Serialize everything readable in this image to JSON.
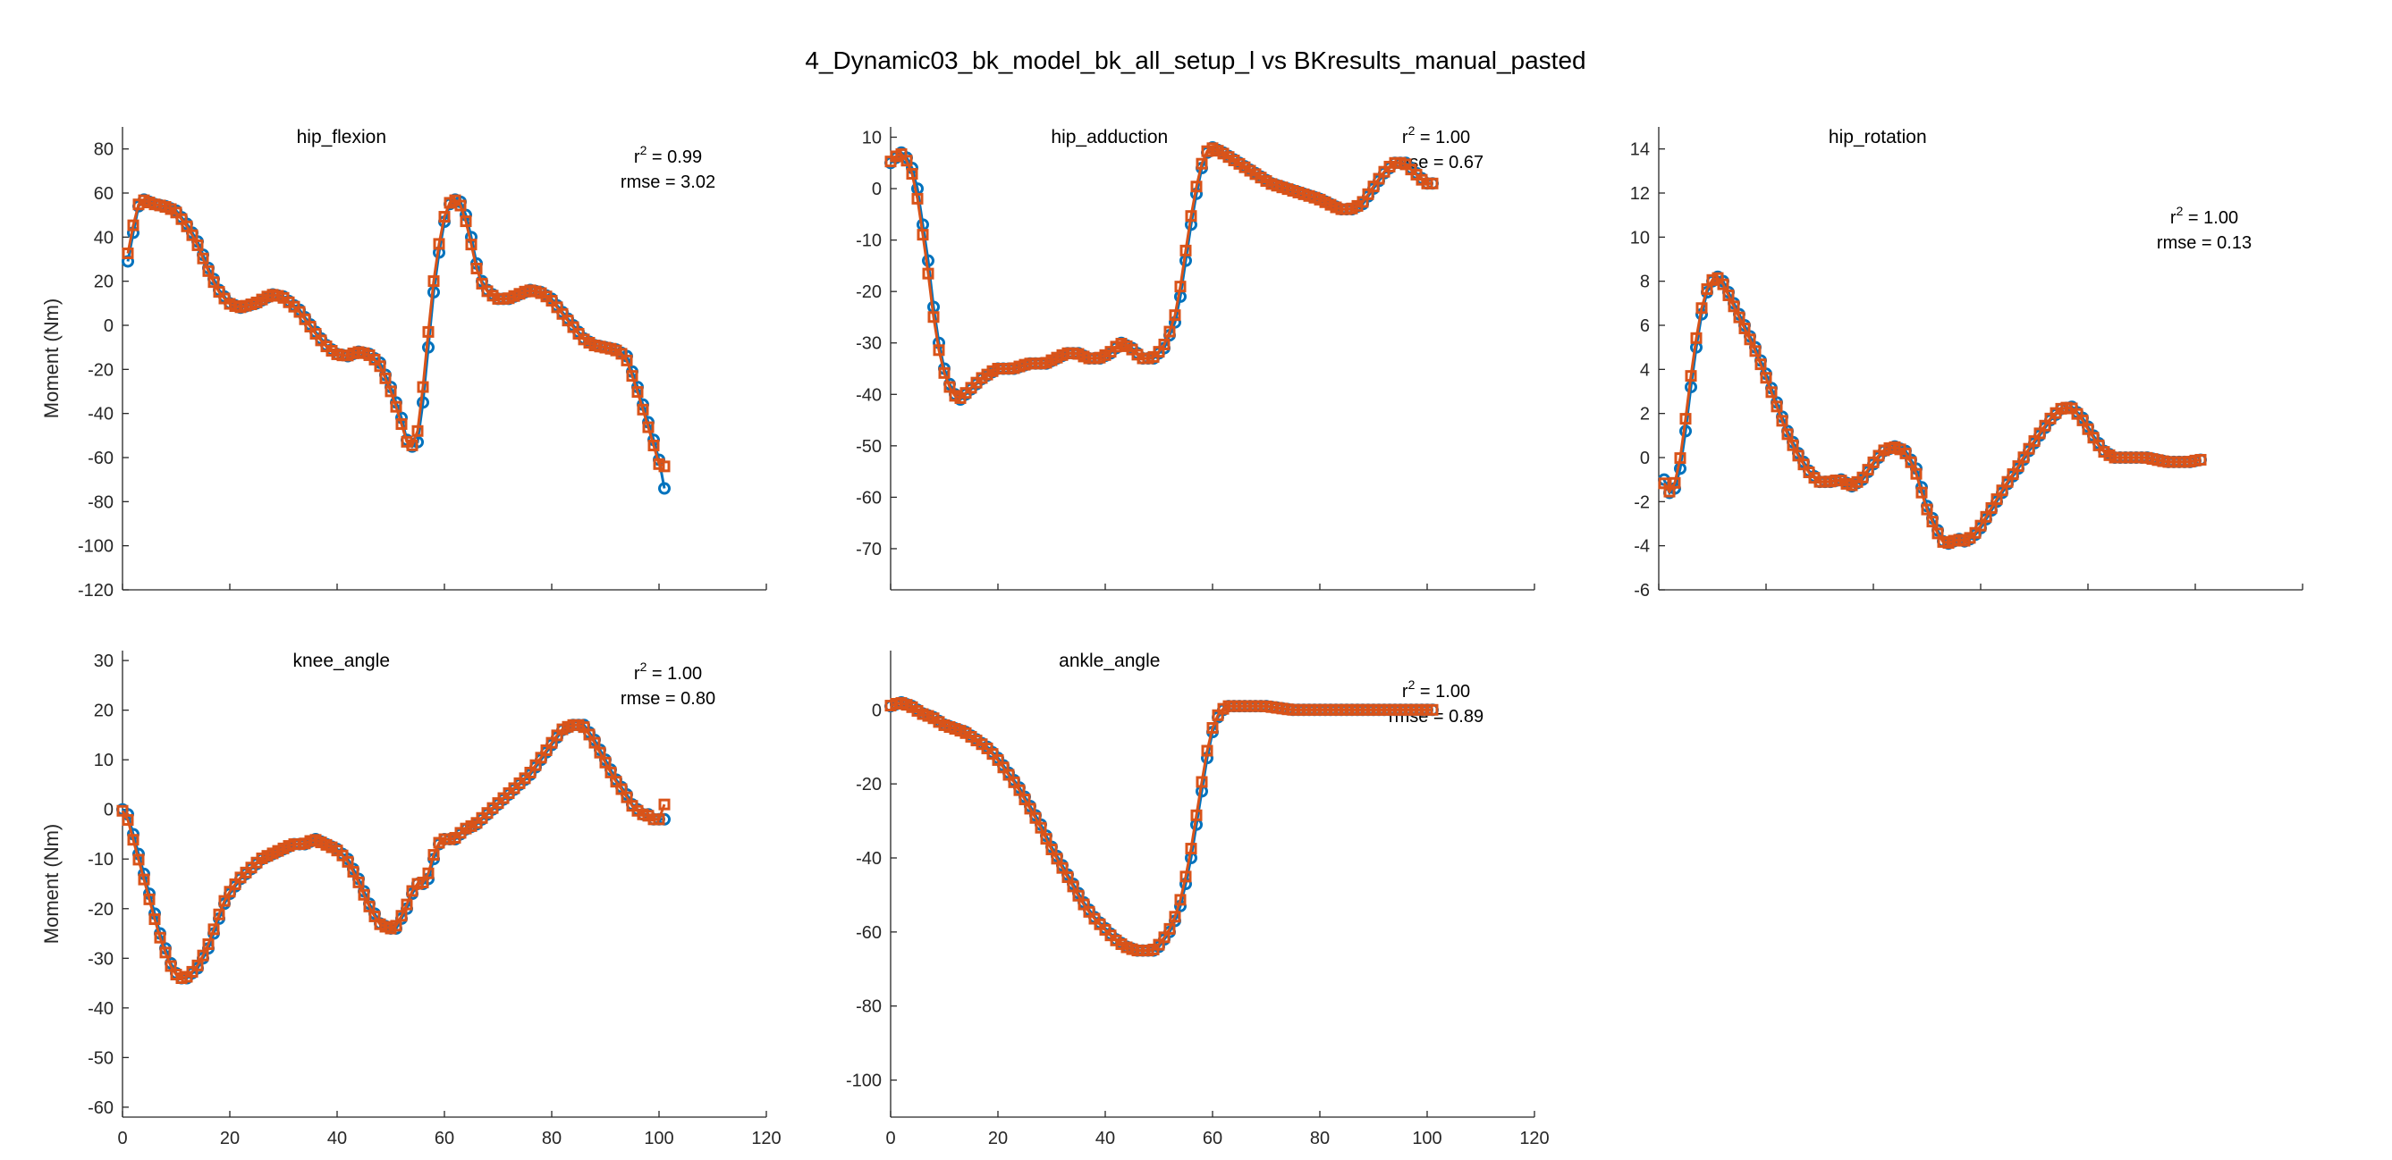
{
  "figure": {
    "title": "4_Dynamic03_bk_model_bk_all_setup_l vs BKresults_manual_pasted",
    "series_colors": {
      "model": "#0072BD",
      "reference": "#D95319"
    }
  },
  "chart_data": [
    {
      "type": "line",
      "title": "hip_flexion",
      "ylabel": "Moment (Nm)",
      "xlabel": "",
      "xlim": [
        0,
        120
      ],
      "ylim": [
        -120,
        90
      ],
      "xticks": [],
      "yticks": [
        80,
        60,
        40,
        20,
        0,
        -20,
        -40,
        -60,
        -80,
        -100,
        -120
      ],
      "ytick_labels": [
        "80",
        "60",
        "40",
        "20",
        "0",
        "-20",
        "-40",
        "-60",
        "-80",
        "-100",
        "-120"
      ],
      "r2_label": "r",
      "r2_value": " = 0.99",
      "rmse_label": "rmse = 3.02",
      "key_points": {
        "x": [
          1,
          2,
          3,
          4,
          6,
          8,
          10,
          12,
          14,
          16,
          18,
          20,
          22,
          25,
          28,
          30,
          33,
          36,
          38,
          40,
          42,
          44,
          46,
          48,
          50,
          52,
          53,
          54,
          55,
          56,
          57,
          58,
          59,
          60,
          61,
          62,
          63,
          64,
          65,
          66,
          67,
          68,
          70,
          72,
          74,
          76,
          78,
          80,
          82,
          84,
          86,
          88,
          90,
          92,
          94,
          96,
          97,
          98,
          99,
          100,
          101
        ],
        "y": [
          29,
          42,
          54,
          57,
          55,
          54,
          52,
          46,
          38,
          26,
          16,
          10,
          8,
          10,
          14,
          13,
          7,
          -3,
          -9,
          -13,
          -14,
          -12,
          -13,
          -17,
          -28,
          -42,
          -52,
          -55,
          -53,
          -35,
          -10,
          15,
          33,
          47,
          55,
          57,
          56,
          50,
          40,
          28,
          20,
          16,
          12,
          12,
          14,
          16,
          15,
          12,
          6,
          0,
          -6,
          -9,
          -10,
          -11,
          -14,
          -28,
          -36,
          -44,
          -52,
          -61,
          -68
        ]
      },
      "series": [
        {
          "name": "",
          "offset": 0,
          "end": -74,
          "marker": "circle"
        },
        {
          "name": "",
          "offset": 0.8,
          "end": -64,
          "marker": "square"
        }
      ]
    },
    {
      "type": "line",
      "title": "hip_adduction",
      "ylabel": "",
      "xlabel": "",
      "xlim": [
        0,
        120
      ],
      "ylim": [
        -78,
        12
      ],
      "xticks": [],
      "yticks": [
        10,
        0,
        -10,
        -20,
        -30,
        -40,
        -50,
        -60,
        -70
      ],
      "ytick_labels": [
        "10",
        "0",
        "-10",
        "-20",
        "-30",
        "-40",
        "-50",
        "-60",
        "-70"
      ],
      "r2_label": "r",
      "r2_value": " = 1.00",
      "rmse_label": "rmse = 0.67",
      "key_points": {
        "x": [
          0,
          1,
          2,
          3,
          4,
          5,
          6,
          7,
          8,
          9,
          10,
          11,
          12,
          13,
          14,
          15,
          17,
          20,
          23,
          26,
          29,
          31,
          33,
          35,
          37,
          39,
          41,
          43,
          45,
          47,
          49,
          51,
          53,
          54,
          55,
          56,
          57,
          58,
          59,
          60,
          62,
          65,
          68,
          71,
          74,
          77,
          80,
          82,
          84,
          86,
          88,
          90,
          92,
          94,
          96,
          98,
          100,
          101
        ],
        "y": [
          5,
          6,
          7,
          6,
          4,
          0,
          -7,
          -14,
          -23,
          -30,
          -35,
          -38,
          -40,
          -41,
          -40,
          -39,
          -37,
          -35,
          -35,
          -34,
          -34,
          -33,
          -32,
          -32,
          -33,
          -33,
          -32,
          -30,
          -31,
          -33,
          -33,
          -31,
          -26,
          -21,
          -14,
          -7,
          -1,
          4,
          7,
          8,
          7,
          5,
          3,
          1,
          0,
          -1,
          -2,
          -3,
          -4,
          -4,
          -3,
          0,
          3,
          5,
          5,
          3,
          1,
          1
        ]
      },
      "series": [
        {
          "name": "",
          "offset": 0,
          "marker": "circle"
        },
        {
          "name": "",
          "offset": 0.8,
          "marker": "square"
        }
      ]
    },
    {
      "type": "line",
      "title": "hip_rotation",
      "ylabel": "",
      "xlabel": "",
      "xlim": [
        0,
        120
      ],
      "ylim": [
        -6,
        15
      ],
      "xticks": [],
      "yticks": [
        14,
        12,
        10,
        8,
        6,
        4,
        2,
        0,
        -2,
        -4,
        -6
      ],
      "ytick_labels": [
        "14",
        "12",
        "10",
        "8",
        "6",
        "4",
        "2",
        "0",
        "-2",
        "-4",
        "-6"
      ],
      "r2_label": "r",
      "r2_value": " = 1.00",
      "rmse_label": "rmse = 0.13",
      "key_points": {
        "x": [
          1,
          2,
          3,
          4,
          5,
          6,
          7,
          8,
          9,
          10,
          11,
          12,
          13,
          14,
          16,
          18,
          20,
          22,
          24,
          26,
          28,
          30,
          32,
          34,
          36,
          38,
          40,
          42,
          44,
          46,
          48,
          50,
          52,
          53,
          54,
          55,
          56,
          57,
          58,
          59,
          60,
          61,
          62,
          63,
          64,
          65,
          67,
          69,
          71,
          73,
          75,
          77,
          79,
          81,
          83,
          85,
          87,
          89,
          91,
          93,
          95,
          97,
          99,
          101
        ],
        "y": [
          -1.0,
          -1.6,
          -1.4,
          -0.5,
          1.2,
          3.2,
          5.0,
          6.5,
          7.5,
          8.0,
          8.2,
          8.0,
          7.5,
          7.0,
          6.0,
          5.0,
          3.8,
          2.5,
          1.2,
          0.2,
          -0.6,
          -1.1,
          -1.1,
          -1.0,
          -1.3,
          -1.0,
          -0.3,
          0.3,
          0.5,
          0.3,
          -0.5,
          -2.2,
          -3.3,
          -3.8,
          -3.9,
          -3.8,
          -3.7,
          -3.8,
          -3.7,
          -3.5,
          -3.2,
          -2.8,
          -2.4,
          -2.0,
          -1.6,
          -1.2,
          -0.5,
          0.3,
          1.0,
          1.7,
          2.2,
          2.3,
          1.8,
          1.0,
          0.3,
          0.0,
          0.0,
          0.0,
          0.0,
          -0.1,
          -0.2,
          -0.2,
          -0.2,
          -0.1
        ]
      },
      "series": [
        {
          "name": "",
          "offset": 0,
          "marker": "circle"
        },
        {
          "name": "",
          "offset": 0.8,
          "marker": "square"
        }
      ]
    },
    {
      "type": "line",
      "title": "knee_angle",
      "ylabel": "Moment (Nm)",
      "xlabel": "",
      "xlim": [
        0,
        120
      ],
      "ylim": [
        -62,
        32
      ],
      "xticks": [
        0,
        20,
        40,
        60,
        80,
        100,
        120
      ],
      "xtick_labels": [
        "0",
        "20",
        "40",
        "60",
        "80",
        "100",
        "120"
      ],
      "yticks": [
        30,
        20,
        10,
        0,
        -10,
        -20,
        -30,
        -40,
        -50,
        -60
      ],
      "ytick_labels": [
        "30",
        "20",
        "10",
        "0",
        "-10",
        "-20",
        "-30",
        "-40",
        "-50",
        "-60"
      ],
      "r2_label": "r",
      "r2_value": " = 1.00",
      "rmse_label": "rmse = 0.80",
      "key_points": {
        "x": [
          0,
          1,
          2,
          3,
          4,
          5,
          6,
          7,
          8,
          9,
          10,
          11,
          12,
          13,
          14,
          15,
          16,
          17,
          18,
          19,
          20,
          22,
          24,
          26,
          28,
          30,
          32,
          34,
          36,
          38,
          40,
          42,
          44,
          46,
          48,
          50,
          51,
          52,
          53,
          54,
          55,
          56,
          57,
          58,
          59,
          60,
          61,
          62,
          63,
          64,
          66,
          68,
          70,
          72,
          74,
          76,
          78,
          80,
          82,
          84,
          86,
          88,
          90,
          92,
          94,
          95,
          96,
          97,
          98,
          99,
          100,
          101
        ],
        "y": [
          0,
          -1,
          -5,
          -9,
          -13,
          -17,
          -21,
          -25,
          -28,
          -31,
          -33,
          -34,
          -34,
          -33,
          -32,
          -30,
          -28,
          -25,
          -22,
          -19,
          -17,
          -14,
          -12,
          -10,
          -9,
          -8,
          -7,
          -7,
          -6,
          -7,
          -8,
          -10,
          -14,
          -19,
          -23,
          -24,
          -24,
          -22,
          -20,
          -17,
          -15,
          -15,
          -14,
          -10,
          -7,
          -6,
          -6,
          -6,
          -5,
          -4,
          -3,
          -1,
          1,
          3,
          5,
          7,
          10,
          13,
          16,
          17,
          17,
          14,
          10,
          6,
          3,
          1,
          0,
          -1,
          -1,
          -2,
          -2,
          -2
        ]
      },
      "series": [
        {
          "name": "",
          "offset": 0,
          "end": -2,
          "marker": "circle"
        },
        {
          "name": "",
          "offset": 0.8,
          "end": 1,
          "marker": "square"
        }
      ]
    },
    {
      "type": "line",
      "title": "ankle_angle",
      "ylabel": "",
      "xlabel": "",
      "xlim": [
        0,
        120
      ],
      "ylim": [
        -110,
        16
      ],
      "xticks": [
        0,
        20,
        40,
        60,
        80,
        100,
        120
      ],
      "xtick_labels": [
        "0",
        "20",
        "40",
        "60",
        "80",
        "100",
        "120"
      ],
      "yticks": [
        0,
        -20,
        -40,
        -60,
        -80,
        -100
      ],
      "ytick_labels": [
        "0",
        "-20",
        "-40",
        "-60",
        "-80",
        "-100"
      ],
      "r2_label": "r",
      "r2_value": " = 1.00",
      "rmse_label": "rmse = 0.89",
      "key_points": {
        "x": [
          0,
          2,
          4,
          6,
          8,
          10,
          12,
          14,
          16,
          18,
          20,
          22,
          24,
          26,
          28,
          30,
          32,
          34,
          36,
          38,
          40,
          42,
          44,
          46,
          48,
          49,
          50,
          51,
          52,
          53,
          54,
          55,
          56,
          57,
          58,
          59,
          60,
          61,
          62,
          63,
          64,
          66,
          70,
          75,
          80,
          85,
          90,
          95,
          100,
          101
        ],
        "y": [
          1,
          2,
          1,
          -1,
          -2,
          -4,
          -5,
          -6,
          -8,
          -10,
          -13,
          -17,
          -21,
          -26,
          -31,
          -37,
          -42,
          -47,
          -52,
          -56,
          -59,
          -62,
          -64,
          -65,
          -65,
          -65,
          -64,
          -62,
          -60,
          -57,
          -53,
          -47,
          -40,
          -31,
          -22,
          -13,
          -6,
          -2,
          0,
          1,
          1,
          1,
          1,
          0,
          0,
          0,
          0,
          0,
          0,
          0
        ]
      },
      "series": [
        {
          "name": "",
          "offset": 0,
          "marker": "circle"
        },
        {
          "name": "",
          "offset": 0.8,
          "marker": "square"
        }
      ]
    }
  ]
}
